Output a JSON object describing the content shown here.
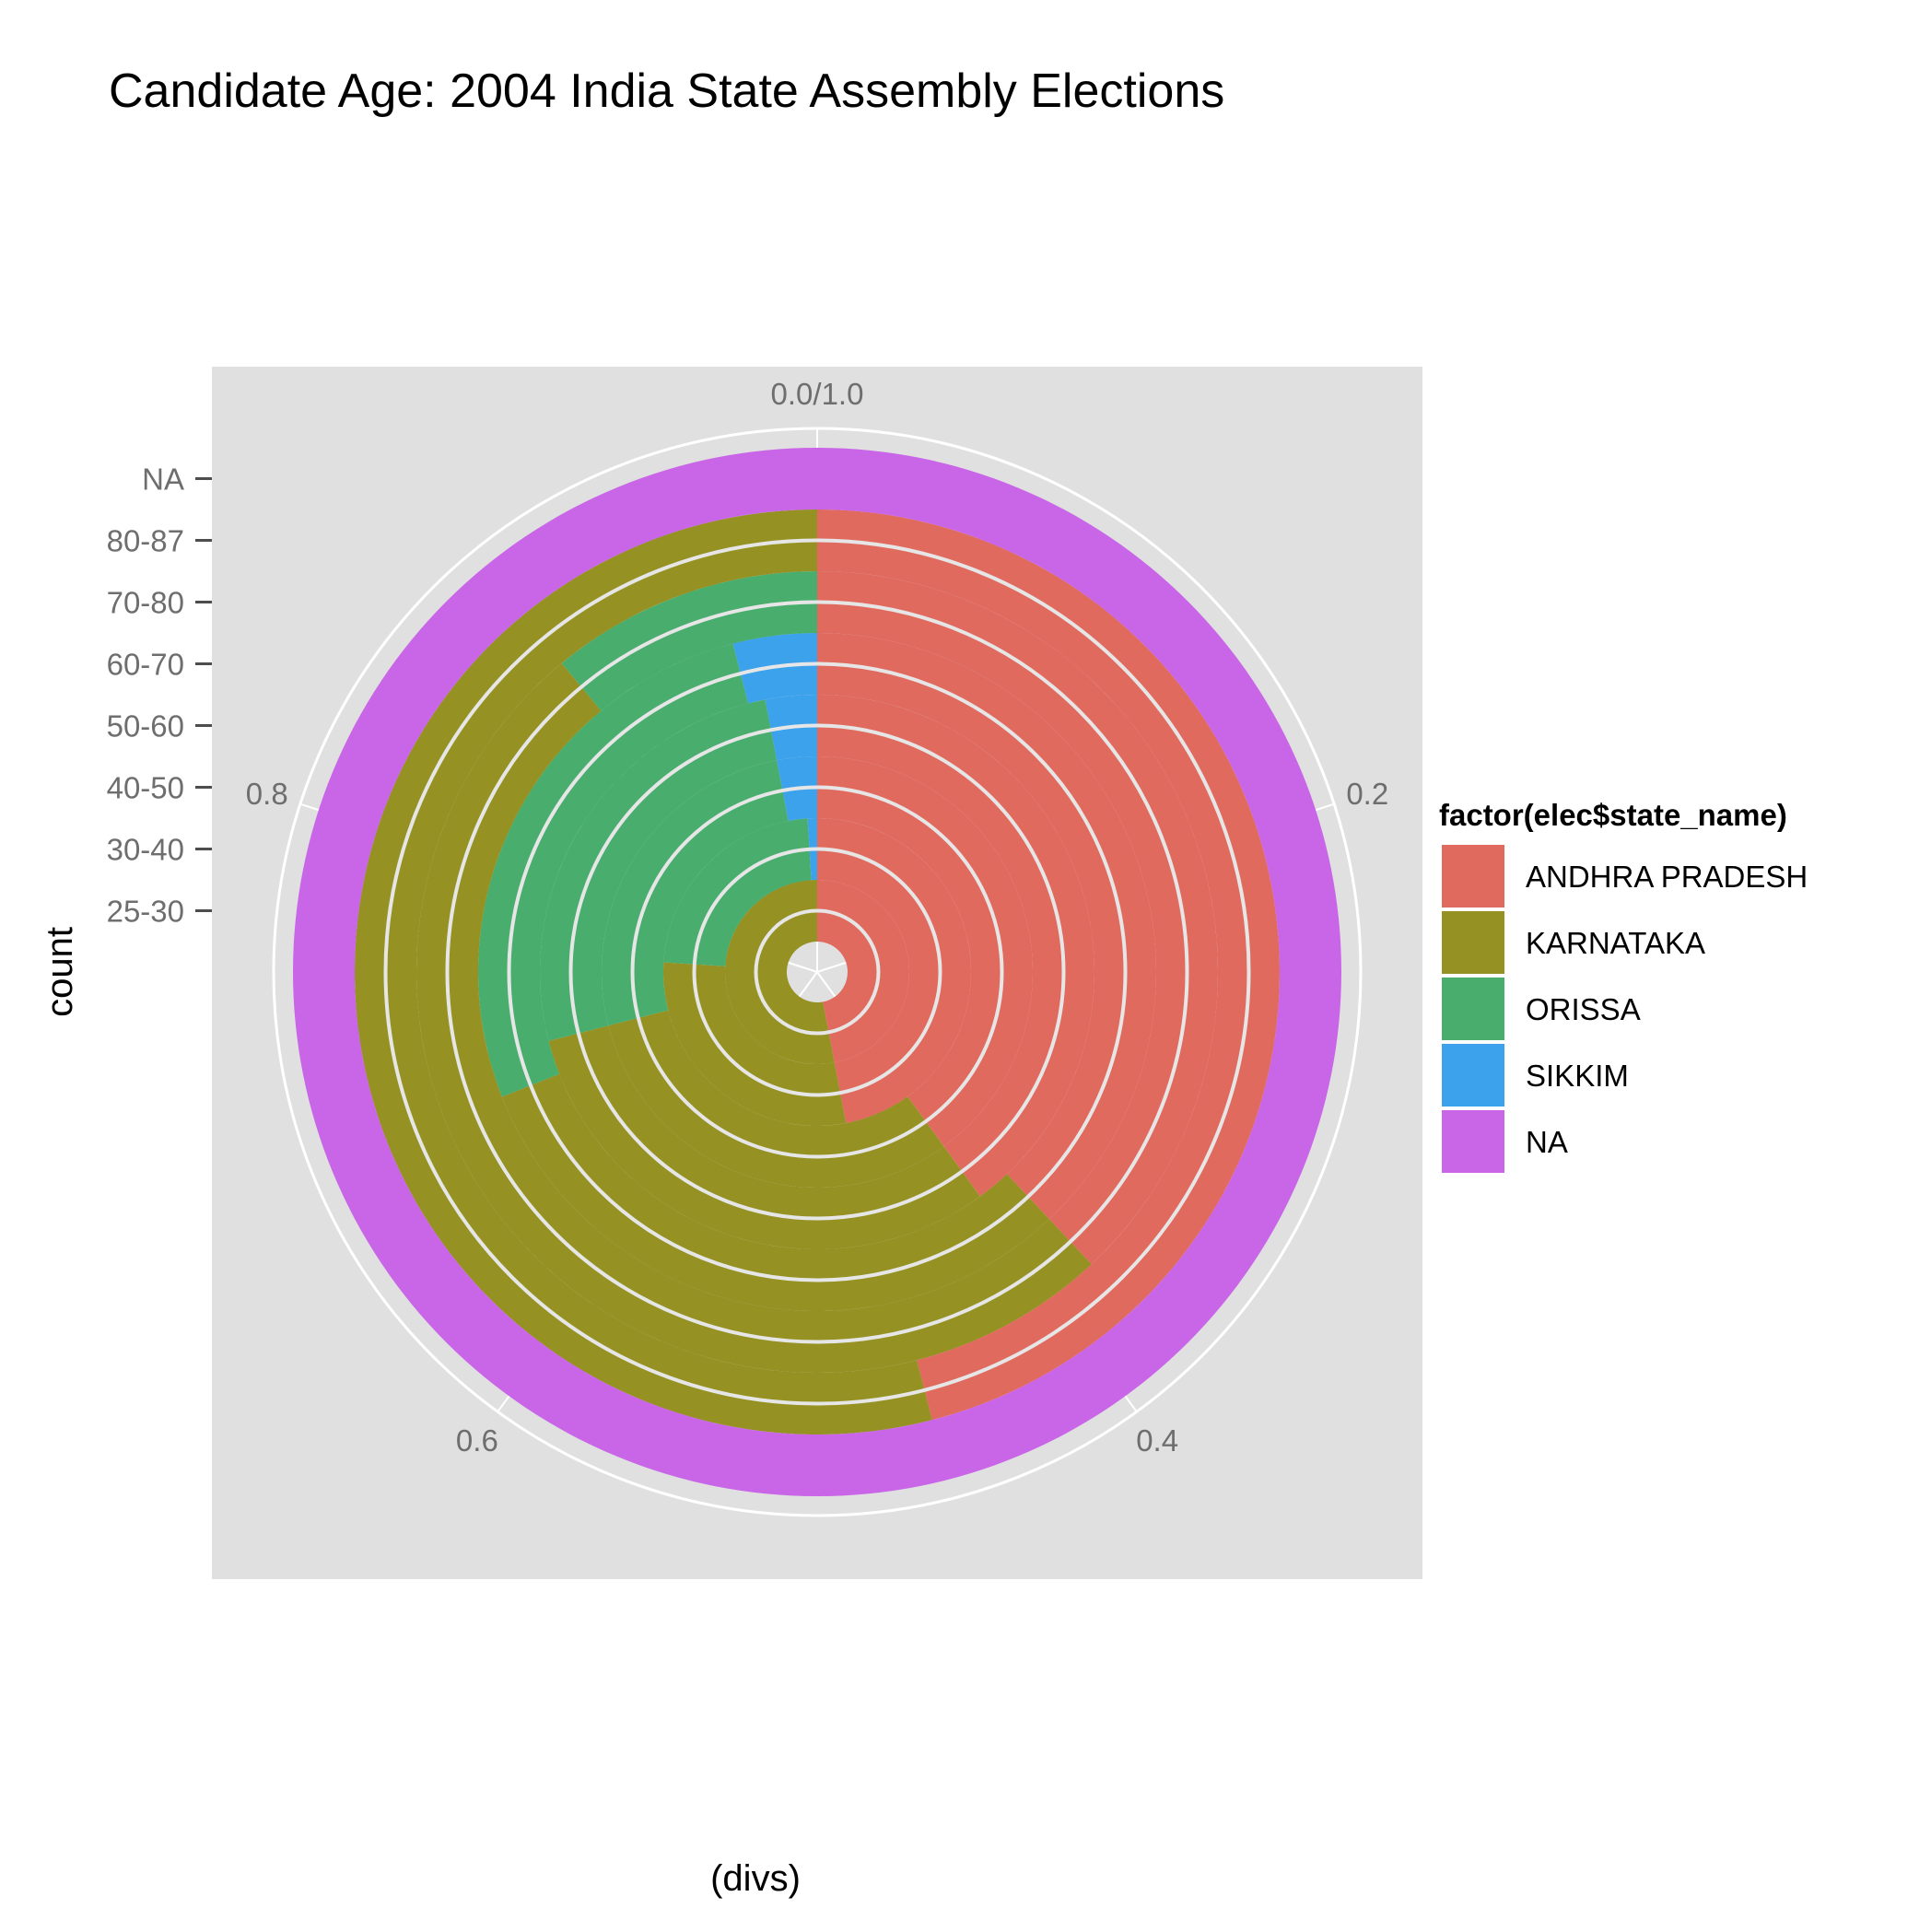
{
  "chart_data": {
    "type": "bar",
    "coord": "polar",
    "title": "Candidate Age: 2004 India State Assembly Elections",
    "xlabel": "(divs)",
    "ylabel": "count",
    "grid": true,
    "legend_position": "right",
    "legend_title": "factor(elec$state_name)",
    "angle_ticks": [
      "0.0/1.0",
      "0.2",
      "0.4",
      "0.6",
      "0.8"
    ],
    "categories": [
      "25-30",
      "30-40",
      "40-50",
      "50-60",
      "60-70",
      "70-80",
      "80-87",
      "NA"
    ],
    "series": [
      {
        "name": "ANDHRA PRADESH",
        "color": "#E16A5F",
        "values": [
          0.47,
          0.47,
          0.4,
          0.4,
          0.38,
          0.38,
          0.46,
          0.0
        ]
      },
      {
        "name": "KARNATAKA",
        "color": "#959122",
        "values": [
          0.53,
          0.29,
          0.31,
          0.31,
          0.31,
          0.51,
          0.54,
          0.0
        ]
      },
      {
        "name": "ORISSA",
        "color": "#49AD6E",
        "values": [
          0.0,
          0.23,
          0.26,
          0.26,
          0.27,
          0.11,
          0.0,
          0.0
        ]
      },
      {
        "name": "SIKKIM",
        "color": "#3CA2EC",
        "values": [
          0.0,
          0.01,
          0.03,
          0.03,
          0.04,
          0.0,
          0.0,
          0.0
        ]
      },
      {
        "name": "NA",
        "color": "#C966E8",
        "values": [
          0.0,
          0.0,
          0.0,
          0.0,
          0.0,
          0.0,
          0.0,
          1.0
        ]
      }
    ]
  }
}
